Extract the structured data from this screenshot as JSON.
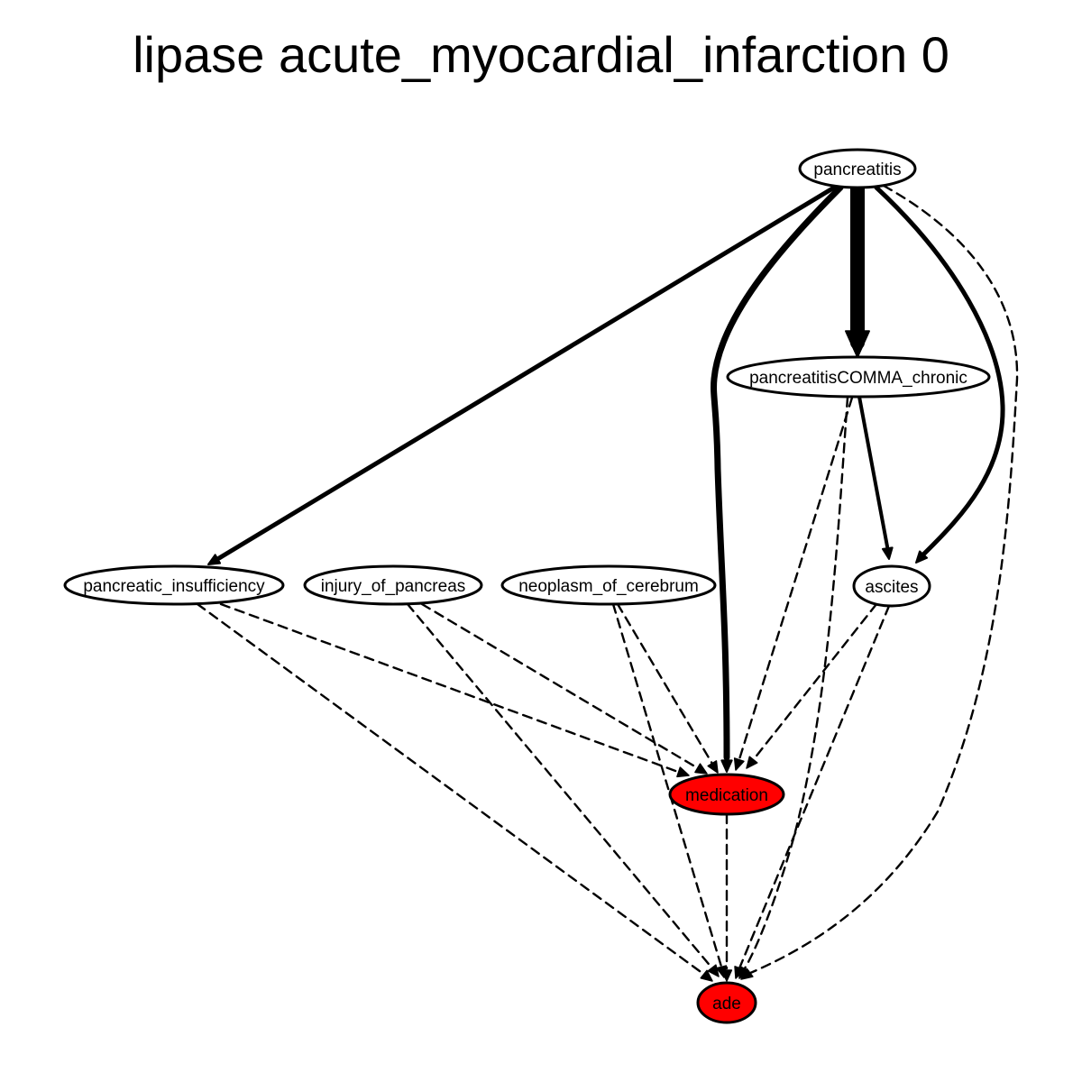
{
  "title": "lipase acute_myocardial_infarction 0",
  "colors": {
    "highlight_fill": "#ff0000",
    "default_fill": "#ffffff",
    "stroke": "#000000"
  },
  "nodes": [
    {
      "id": "pancreatitis",
      "label": "pancreatitis",
      "highlight": false
    },
    {
      "id": "pancreatitis_chronic",
      "label": "pancreatitisCOMMA_chronic",
      "highlight": false
    },
    {
      "id": "pancreatic_insufficiency",
      "label": "pancreatic_insufficiency",
      "highlight": false
    },
    {
      "id": "injury_of_pancreas",
      "label": "injury_of_pancreas",
      "highlight": false
    },
    {
      "id": "neoplasm_of_cerebrum",
      "label": "neoplasm_of_cerebrum",
      "highlight": false
    },
    {
      "id": "ascites",
      "label": "ascites",
      "highlight": false
    },
    {
      "id": "medication",
      "label": "medication",
      "highlight": true
    },
    {
      "id": "ade",
      "label": "ade",
      "highlight": true
    }
  ],
  "edges": [
    {
      "from": "pancreatitis",
      "to": "pancreatic_insufficiency",
      "style": "solid",
      "weight": 2
    },
    {
      "from": "pancreatitis",
      "to": "pancreatitis_chronic",
      "style": "solid",
      "weight": 5
    },
    {
      "from": "pancreatitis",
      "to": "medication",
      "style": "solid",
      "weight": 3
    },
    {
      "from": "pancreatitis",
      "to": "ascites",
      "style": "solid",
      "weight": 2
    },
    {
      "from": "pancreatitis",
      "to": "ade",
      "style": "dashed",
      "weight": 1
    },
    {
      "from": "pancreatitis_chronic",
      "to": "ascites",
      "style": "solid",
      "weight": 2
    },
    {
      "from": "pancreatitis_chronic",
      "to": "medication",
      "style": "dashed",
      "weight": 1
    },
    {
      "from": "pancreatitis_chronic",
      "to": "ade",
      "style": "dashed",
      "weight": 1
    },
    {
      "from": "pancreatic_insufficiency",
      "to": "medication",
      "style": "dashed",
      "weight": 1
    },
    {
      "from": "pancreatic_insufficiency",
      "to": "ade",
      "style": "dashed",
      "weight": 1
    },
    {
      "from": "injury_of_pancreas",
      "to": "medication",
      "style": "dashed",
      "weight": 1
    },
    {
      "from": "injury_of_pancreas",
      "to": "ade",
      "style": "dashed",
      "weight": 1
    },
    {
      "from": "neoplasm_of_cerebrum",
      "to": "medication",
      "style": "dashed",
      "weight": 1
    },
    {
      "from": "neoplasm_of_cerebrum",
      "to": "ade",
      "style": "dashed",
      "weight": 1
    },
    {
      "from": "ascites",
      "to": "medication",
      "style": "dashed",
      "weight": 1
    },
    {
      "from": "ascites",
      "to": "ade",
      "style": "dashed",
      "weight": 1
    },
    {
      "from": "medication",
      "to": "ade",
      "style": "dashed",
      "weight": 1
    }
  ]
}
